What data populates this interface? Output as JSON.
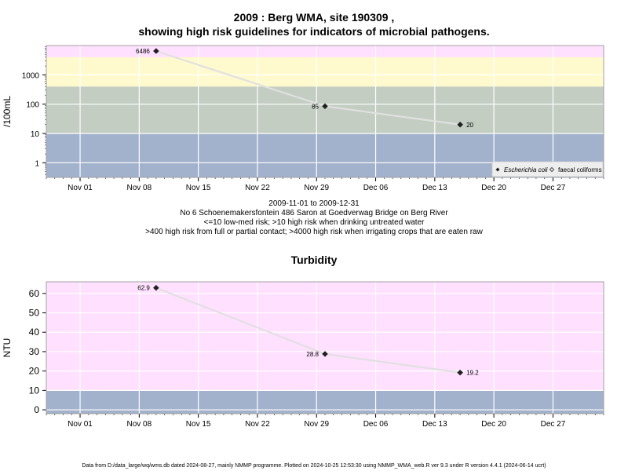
{
  "header": {
    "title_line1": "2009 : Berg WMA, site 190309 ,",
    "title_line2": "showing high risk guidelines for indicators of microbial pathogens."
  },
  "caption": {
    "line1": "2009-11-01 to 2009-12-31",
    "line2": "No 6 Schoenemakersfontein 486 Saron at Goedverwag Bridge on Berg River",
    "line3": "<=10 low-med risk; >10 high risk when drinking untreated water",
    "line4": ">400 high risk from full or partial contact; >4000 high risk when irrigating crops that are eaten raw"
  },
  "turbidity_title": "Turbidity",
  "footer": "Data from D:/data_large/wq/wms.db dated 2024-08-27, mainly NMMP programme. Plotted on 2024-10-25 12:53:30 using NMMP_WMA_web.R ver 9.3 under R version 4.4.1 (2024-06-14 ucrt)",
  "colors": {
    "band_blue": "#a2b1cc",
    "band_gray": "#c3cdc2",
    "band_yellow": "#fffacd",
    "band_pink": "#ffe0ff",
    "line": "#e0e0e0",
    "grid": "#ffffff"
  },
  "chart_data": [
    {
      "type": "line",
      "title": "2009 : Berg WMA, site 190309 , showing high risk guidelines for indicators of microbial pathogens.",
      "ylabel": "/100mL",
      "y_scale": "log",
      "xlim": [
        "2009-10-28",
        "2010-01-02"
      ],
      "x_ticks": [
        "Nov 01",
        "Nov 08",
        "Nov 15",
        "Nov 22",
        "Nov 29",
        "Dec 06",
        "Dec 13",
        "Dec 20",
        "Dec 27"
      ],
      "y_ticks": [
        "1",
        "10",
        "100",
        "1000"
      ],
      "grid": true,
      "bands": [
        {
          "from": 0,
          "to": 10,
          "color": "#a2b1cc"
        },
        {
          "from": 10,
          "to": 400,
          "color": "#c3cdc2"
        },
        {
          "from": 400,
          "to": 4000,
          "color": "#fffacd"
        },
        {
          "from": 4000,
          "to": 10000,
          "color": "#ffe0ff"
        }
      ],
      "series": [
        {
          "name": "Escherichia coli",
          "marker": "filled-diamond",
          "x": [
            "2009-11-10",
            "2009-11-30",
            "2009-12-16"
          ],
          "y": [
            6486,
            85,
            20
          ],
          "labels": [
            "6486",
            "85",
            "20"
          ]
        },
        {
          "name": "faecal coliforms",
          "marker": "open-diamond",
          "x": [],
          "y": []
        }
      ],
      "legend": {
        "placement": "bottom-right",
        "entries": [
          "Escherichia coli",
          "faecal coliforms"
        ]
      }
    },
    {
      "type": "line",
      "title": "Turbidity",
      "ylabel": "NTU",
      "xlim": [
        "2009-10-28",
        "2010-01-02"
      ],
      "ylim": [
        -2,
        66
      ],
      "x_ticks": [
        "Nov 01",
        "Nov 08",
        "Nov 15",
        "Nov 22",
        "Nov 29",
        "Dec 06",
        "Dec 13",
        "Dec 20",
        "Dec 27"
      ],
      "y_ticks": [
        "0",
        "10",
        "20",
        "30",
        "40",
        "50",
        "60"
      ],
      "grid": true,
      "bands": [
        {
          "from": -2,
          "to": 10,
          "color": "#a2b1cc"
        },
        {
          "from": 10,
          "to": 66,
          "color": "#ffe0ff"
        }
      ],
      "series": [
        {
          "name": "",
          "marker": "filled-diamond",
          "x": [
            "2009-11-10",
            "2009-11-30",
            "2009-12-16"
          ],
          "y": [
            62.9,
            28.8,
            19.2
          ],
          "labels": [
            "62.9",
            "28.8",
            "19.2"
          ]
        }
      ]
    }
  ]
}
